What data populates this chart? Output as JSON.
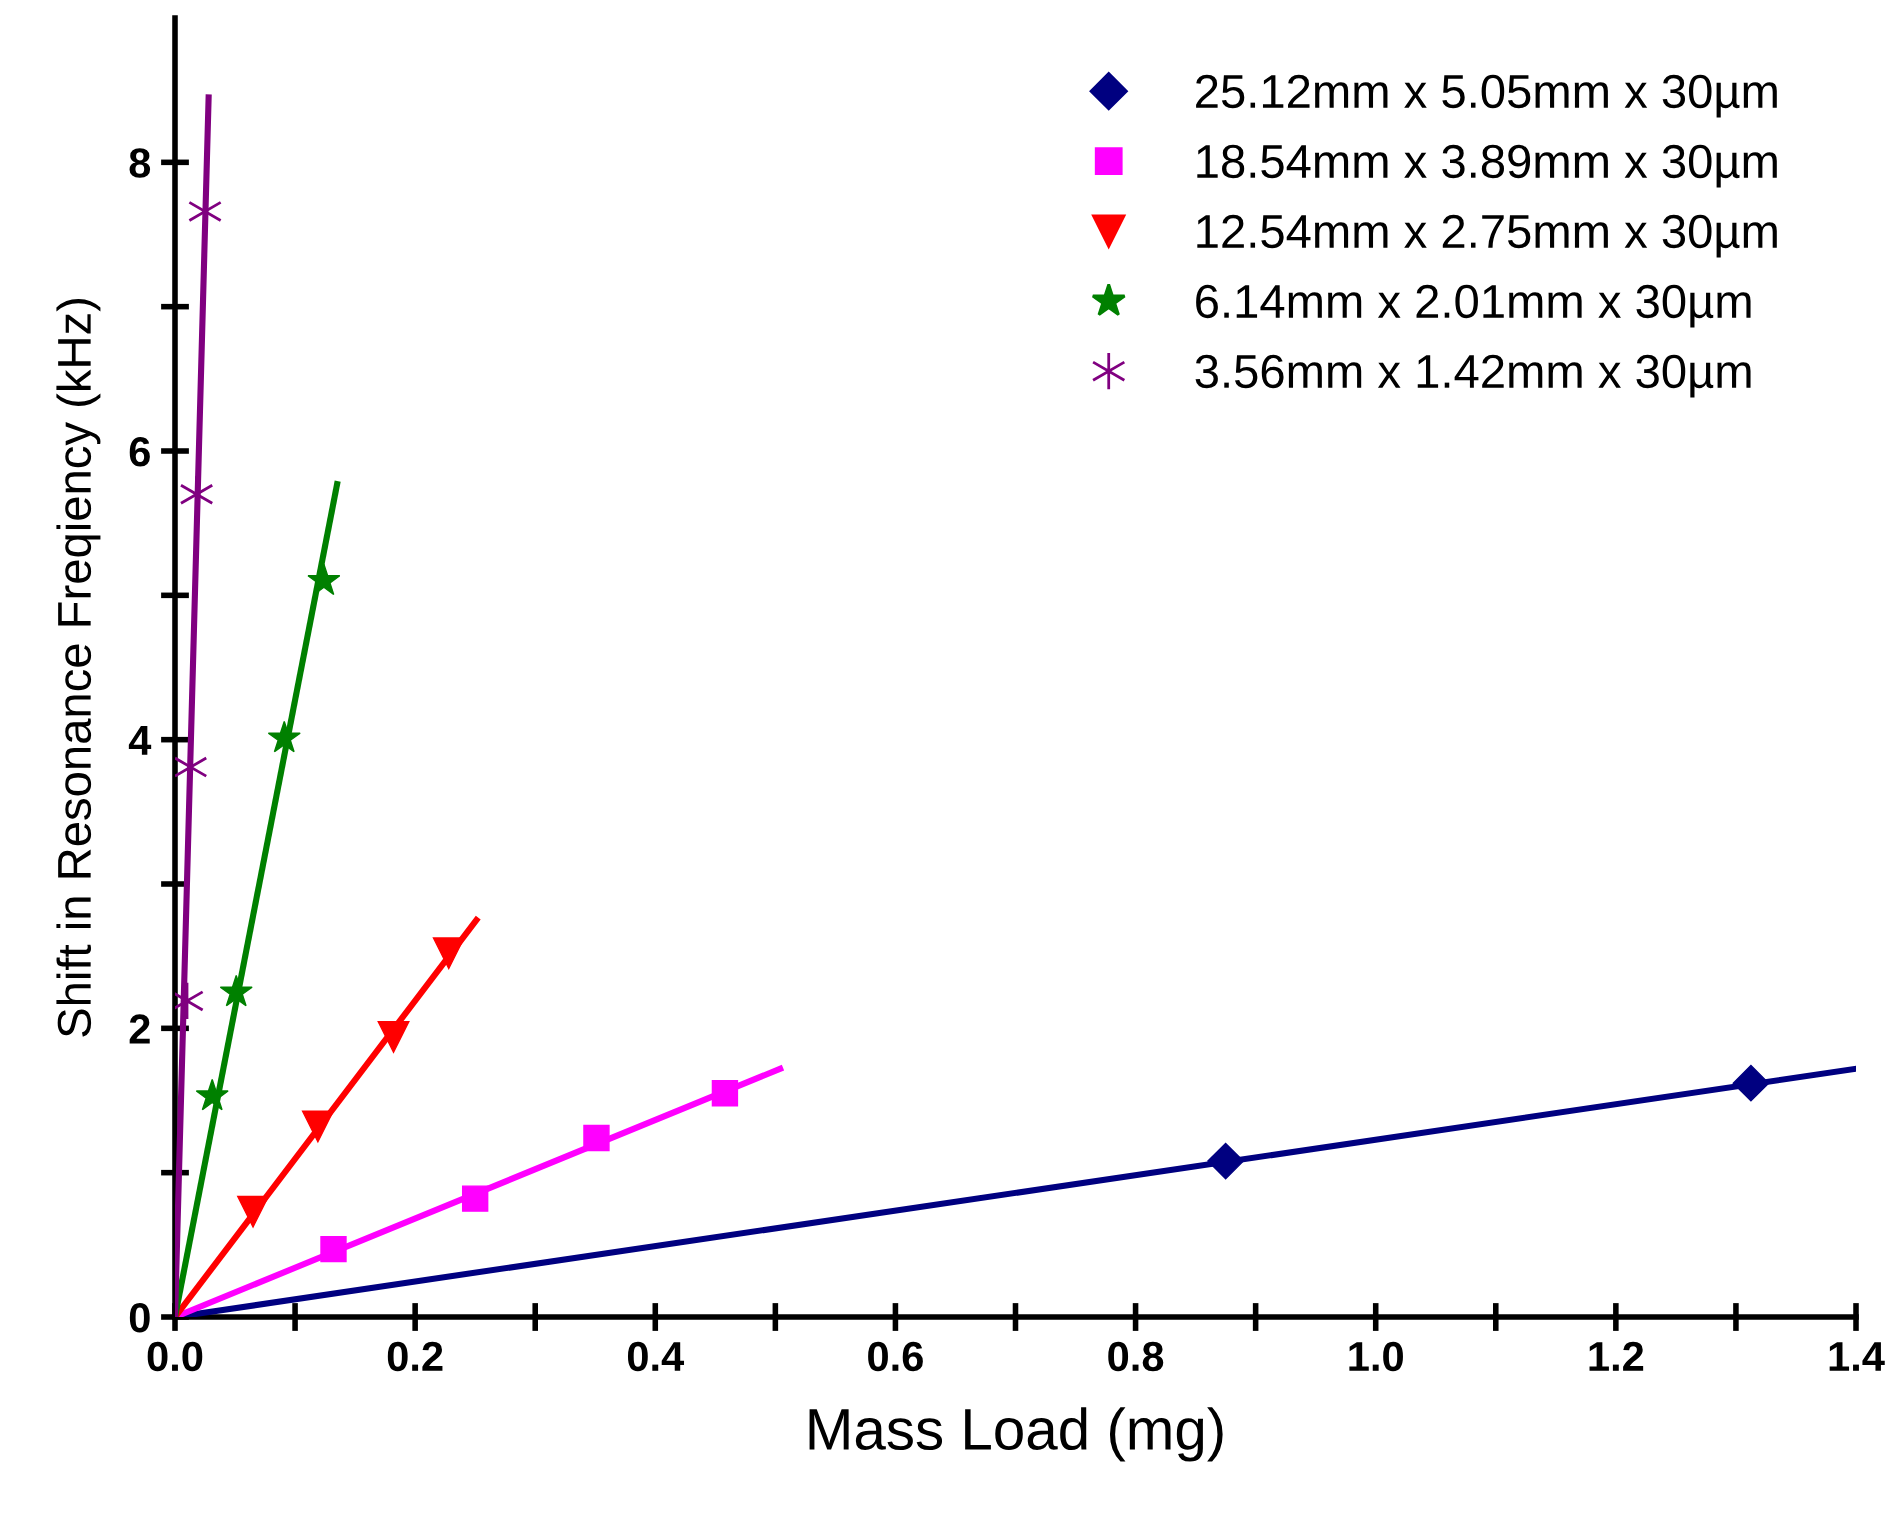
{
  "chart_data": {
    "type": "scatter",
    "xlabel": "Mass Load (mg)",
    "ylabel": "Shift in Resonance Freqiency (kHz)",
    "xlim": [
      0,
      1.4
    ],
    "ylim": [
      0,
      9
    ],
    "xticks": [
      {
        "value": 0,
        "label": "0.0"
      },
      {
        "value": 0.1,
        "label": null
      },
      {
        "value": 0.2,
        "label": "0.2"
      },
      {
        "value": 0.3,
        "label": null
      },
      {
        "value": 0.4,
        "label": "0.4"
      },
      {
        "value": 0.5,
        "label": null
      },
      {
        "value": 0.6,
        "label": "0.6"
      },
      {
        "value": 0.7,
        "label": null
      },
      {
        "value": 0.8,
        "label": "0.8"
      },
      {
        "value": 0.9,
        "label": null
      },
      {
        "value": 1.0,
        "label": "1.0"
      },
      {
        "value": 1.1,
        "label": null
      },
      {
        "value": 1.2,
        "label": "1.2"
      },
      {
        "value": 1.3,
        "label": null
      },
      {
        "value": 1.4,
        "label": "1.4"
      }
    ],
    "yticks": [
      0,
      {
        "value": 1,
        "label": null
      },
      2,
      {
        "value": 3,
        "label": null
      },
      4,
      {
        "value": 5,
        "label": null
      },
      6,
      {
        "value": 7,
        "label": null
      },
      8
    ],
    "grid": false,
    "legend": "top right",
    "series": [
      {
        "name": "25.12mm x 5.05mm x 30µm",
        "color": "#000080",
        "marker": "diamond",
        "x": [
          0.875,
          1.3125
        ],
        "values": [
          1.08,
          1.62
        ]
      },
      {
        "name": "18.54mm x 3.89mm x 30µm",
        "color": "#ff00ff",
        "marker": "square",
        "x": [
          0.132,
          0.25,
          0.351,
          0.458
        ],
        "values": [
          0.47,
          0.82,
          1.24,
          1.55
        ]
      },
      {
        "name": "12.54mm x 2.75mm x 30µm",
        "color": "#ff0000",
        "marker": "triangle",
        "x": [
          0.065,
          0.119,
          0.182,
          0.228
        ],
        "values": [
          0.73,
          1.32,
          1.94,
          2.52
        ]
      },
      {
        "name": "6.14mm x 2.01mm x 30µm",
        "color": "#008000",
        "marker": "star",
        "x": [
          0.031,
          0.051,
          0.091,
          0.124
        ],
        "values": [
          1.53,
          2.25,
          4.01,
          5.1
        ]
      },
      {
        "name": "3.56mm x 1.42mm x 30µm",
        "color": "#800080",
        "marker": "cross",
        "x": [
          0.01,
          0.013,
          0.018,
          0.025
        ],
        "values": [
          2.19,
          3.81,
          5.7,
          7.66
        ]
      },
      {
        "type": "line",
        "color": "#000080",
        "x": [
          0,
          1.4
        ],
        "values": [
          0,
          1.72
        ]
      },
      {
        "type": "line",
        "color": "#ff00ff",
        "x": [
          0,
          0.504
        ],
        "values": [
          0,
          1.72
        ]
      },
      {
        "type": "line",
        "color": "#ff0000",
        "x": [
          0,
          0.251
        ],
        "values": [
          0,
          2.75
        ]
      },
      {
        "type": "line",
        "color": "#008000",
        "x": [
          0,
          0.135
        ],
        "values": [
          0,
          5.77
        ]
      },
      {
        "type": "line",
        "color": "#800080",
        "x": [
          0,
          0.028
        ],
        "values": [
          0,
          8.45
        ]
      }
    ]
  }
}
